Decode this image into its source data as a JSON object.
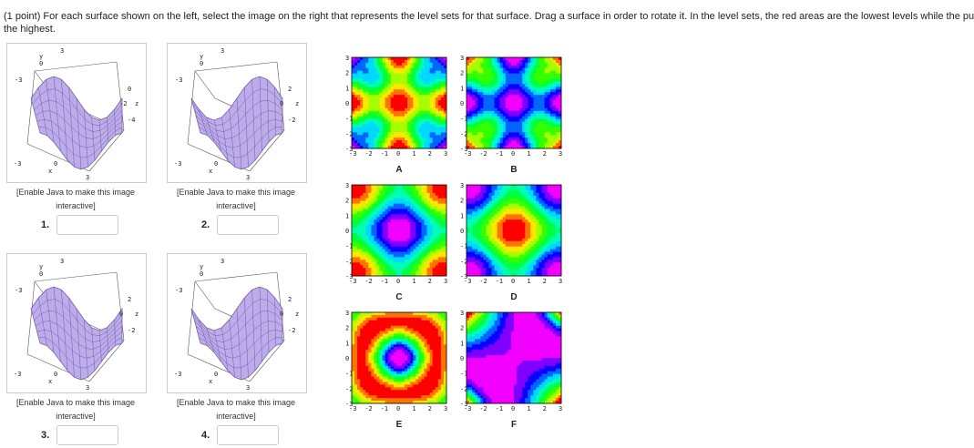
{
  "prompt": {
    "lines": [
      "(1 point) For each surface shown on the left, select the image on the right that represents the level sets for that surface. Drag a surface in order to rotate it. In the level sets, the red areas are the lowest levels while the pu",
      "the highest."
    ]
  },
  "surfaces": [
    {
      "number": "1.",
      "caption_lines": [
        "[Enable Java to make this image",
        "interactive]"
      ],
      "axis_labels": [
        "3",
        "y",
        "0",
        "-3",
        "0",
        "-2",
        "z",
        "-4",
        "-3",
        "0",
        "x",
        "3"
      ]
    },
    {
      "number": "2.",
      "caption_lines": [
        "[Enable Java to make this image",
        "interactive]"
      ],
      "axis_labels": [
        "3",
        "y",
        "0",
        "-3",
        "2",
        "0",
        "z",
        "-2",
        "-3",
        "0",
        "x",
        "3"
      ]
    },
    {
      "number": "3.",
      "caption_lines": [
        "[Enable Java to make this image",
        "interactive]"
      ],
      "axis_labels": [
        "3",
        "y",
        "0",
        "-3",
        "2",
        "0",
        "z",
        "-2",
        "-3",
        "0",
        "x",
        "3"
      ]
    },
    {
      "number": "4.",
      "caption_lines": [
        "[Enable Java to make this image",
        "interactive]"
      ],
      "axis_labels": [
        "3",
        "y",
        "0",
        "-3",
        "2",
        "0",
        "z",
        "-2",
        "-3",
        "0",
        "x",
        "3"
      ]
    }
  ],
  "level_sets": [
    {
      "letter": "A",
      "xticks": [
        "-3",
        "-2",
        "-1",
        "0",
        "1",
        "2",
        "3"
      ],
      "yticks": [
        "3",
        "2",
        "1",
        "0",
        "-1",
        "-2",
        "-3"
      ]
    },
    {
      "letter": "B",
      "xticks": [
        "-3",
        "-2",
        "-1",
        "0",
        "1",
        "2",
        "3"
      ],
      "yticks": [
        "3",
        "2",
        "1",
        "0",
        "-1",
        "-2",
        "-3"
      ]
    },
    {
      "letter": "C",
      "xticks": [
        "-3",
        "-2",
        "-1",
        "0",
        "1",
        "2",
        "3"
      ],
      "yticks": [
        "3",
        "2",
        "1",
        "0",
        "-1",
        "-2",
        "-3"
      ]
    },
    {
      "letter": "D",
      "xticks": [
        "-3",
        "-2",
        "-1",
        "0",
        "1",
        "2",
        "3"
      ],
      "yticks": [
        "3",
        "2",
        "1",
        "0",
        "-1",
        "-2",
        "-3"
      ]
    },
    {
      "letter": "E",
      "xticks": [
        "-3",
        "-2",
        "-1",
        "0",
        "1",
        "2",
        "3"
      ],
      "yticks": [
        "3",
        "2",
        "1",
        "0",
        "-1",
        "-2",
        "-3"
      ]
    },
    {
      "letter": "F",
      "xticks": [
        "-3",
        "-2",
        "-1",
        "0",
        "1",
        "2",
        "3"
      ],
      "yticks": [
        "3",
        "2",
        "1",
        "0",
        "-1",
        "-2",
        "-3"
      ]
    }
  ]
}
